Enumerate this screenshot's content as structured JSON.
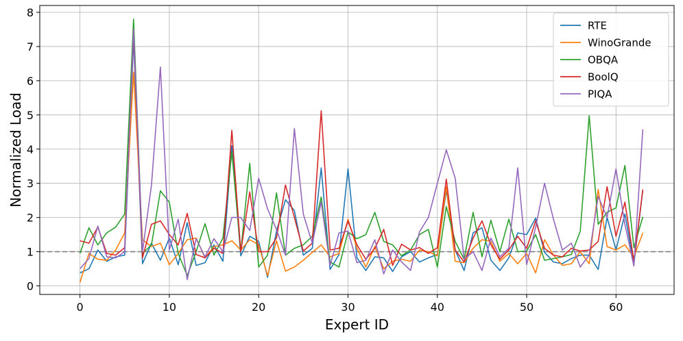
{
  "chart_data": {
    "type": "line",
    "title": "",
    "xlabel": "Expert ID",
    "ylabel": "Normalized Load",
    "xlim": [
      -4.5,
      66.5
    ],
    "ylim": [
      -0.25,
      8.2
    ],
    "x_ticks": [
      0,
      10,
      20,
      30,
      40,
      50,
      60
    ],
    "y_ticks": [
      0,
      1,
      2,
      3,
      4,
      5,
      6,
      7,
      8
    ],
    "grid": true,
    "legend_position": "top-right",
    "reference_line": {
      "y": 1,
      "color": "#7f7f7f",
      "style": "dashed"
    },
    "x": [
      0,
      1,
      2,
      3,
      4,
      5,
      6,
      7,
      8,
      9,
      10,
      11,
      12,
      13,
      14,
      15,
      16,
      17,
      18,
      19,
      20,
      21,
      22,
      23,
      24,
      25,
      26,
      27,
      28,
      29,
      30,
      31,
      32,
      33,
      34,
      35,
      36,
      37,
      38,
      39,
      40,
      41,
      42,
      43,
      44,
      45,
      46,
      47,
      48,
      49,
      50,
      51,
      52,
      53,
      54,
      55,
      56,
      57,
      58,
      59,
      60,
      61,
      62,
      63
    ],
    "series": [
      {
        "name": "RTE",
        "color": "#1f77b4",
        "values": [
          0.38,
          0.5,
          1.05,
          0.72,
          0.85,
          0.9,
          7.2,
          0.65,
          1.25,
          0.75,
          1.4,
          0.62,
          1.85,
          0.6,
          0.68,
          1.2,
          0.72,
          4.1,
          0.88,
          1.45,
          1.3,
          0.25,
          1.6,
          2.52,
          2.2,
          0.9,
          1.1,
          3.45,
          0.48,
          0.92,
          3.42,
          0.82,
          0.45,
          0.85,
          0.82,
          0.42,
          0.85,
          1.0,
          0.7,
          0.82,
          0.92,
          2.8,
          1.05,
          0.45,
          1.55,
          1.7,
          0.75,
          0.45,
          0.82,
          1.55,
          1.5,
          1.98,
          0.98,
          0.7,
          0.65,
          0.8,
          0.9,
          0.9,
          0.48,
          2.0,
          1.05,
          2.1,
          0.65,
          2.8
        ]
      },
      {
        "name": "WinoGrande",
        "color": "#ff7f0e",
        "values": [
          0.1,
          0.95,
          0.78,
          0.75,
          1.05,
          1.55,
          6.25,
          1.35,
          1.15,
          1.25,
          0.62,
          0.95,
          1.35,
          1.4,
          0.82,
          1.15,
          1.2,
          1.32,
          1.05,
          1.35,
          1.2,
          0.3,
          1.32,
          0.43,
          0.55,
          0.75,
          0.98,
          1.2,
          0.85,
          0.95,
          1.95,
          1.1,
          0.55,
          1.15,
          0.5,
          0.72,
          0.78,
          0.72,
          1.05,
          1.0,
          0.88,
          2.9,
          0.72,
          0.68,
          1.1,
          1.35,
          1.3,
          0.72,
          0.95,
          0.65,
          0.95,
          0.38,
          1.35,
          0.9,
          0.6,
          0.65,
          1.0,
          0.65,
          2.82,
          1.15,
          1.05,
          1.2,
          0.85,
          1.55
        ]
      },
      {
        "name": "OBQA",
        "color": "#2ca02c",
        "values": [
          0.95,
          1.7,
          1.2,
          1.55,
          1.72,
          2.1,
          7.8,
          0.95,
          1.2,
          2.78,
          2.45,
          0.95,
          0.3,
          1.0,
          1.82,
          0.9,
          1.4,
          3.92,
          1.0,
          3.58,
          0.55,
          0.9,
          2.72,
          0.9,
          1.1,
          1.2,
          1.45,
          2.6,
          0.7,
          0.55,
          1.58,
          1.38,
          1.5,
          2.15,
          1.3,
          1.2,
          0.88,
          1.05,
          1.5,
          1.65,
          0.55,
          2.32,
          1.3,
          0.78,
          2.15,
          0.85,
          1.92,
          1.0,
          1.95,
          1.0,
          1.02,
          1.5,
          0.75,
          0.8,
          0.85,
          0.92,
          1.6,
          4.98,
          1.8,
          2.15,
          2.28,
          3.52,
          1.12,
          2.02
        ]
      },
      {
        "name": "BoolQ",
        "color": "#d62728",
        "values": [
          1.32,
          1.25,
          1.72,
          0.95,
          0.9,
          1.12,
          7.4,
          0.82,
          1.8,
          1.9,
          1.5,
          1.2,
          2.12,
          0.92,
          0.82,
          1.1,
          0.95,
          4.55,
          1.0,
          2.75,
          1.0,
          1.0,
          1.4,
          2.95,
          2.0,
          1.02,
          1.25,
          5.12,
          1.05,
          1.1,
          1.9,
          1.2,
          0.78,
          1.1,
          1.65,
          0.6,
          1.22,
          1.05,
          1.12,
          0.95,
          1.12,
          3.12,
          1.05,
          0.7,
          1.4,
          1.9,
          1.2,
          0.78,
          1.05,
          1.45,
          1.1,
          1.9,
          1.1,
          0.9,
          0.85,
          1.1,
          1.02,
          1.05,
          1.3,
          2.9,
          1.45,
          2.45,
          0.72,
          2.82
        ]
      },
      {
        "name": "PIQA",
        "color": "#9467bd",
        "values": [
          0.5,
          0.8,
          1.75,
          0.85,
          0.82,
          1.0,
          7.5,
          1.0,
          2.95,
          6.4,
          1.05,
          1.95,
          0.18,
          1.38,
          0.85,
          1.38,
          1.0,
          2.0,
          2.0,
          1.62,
          3.15,
          2.25,
          1.65,
          0.9,
          4.6,
          2.1,
          1.25,
          2.45,
          0.6,
          1.55,
          1.6,
          0.68,
          0.75,
          1.35,
          0.35,
          1.05,
          0.7,
          0.45,
          1.58,
          2.0,
          3.0,
          3.98,
          3.15,
          0.78,
          1.0,
          0.45,
          1.4,
          0.85,
          1.1,
          3.45,
          0.62,
          1.72,
          3.0,
          1.95,
          1.05,
          1.25,
          0.55,
          0.9,
          2.62,
          2.0,
          3.42,
          1.8,
          0.58,
          4.58
        ]
      }
    ]
  }
}
